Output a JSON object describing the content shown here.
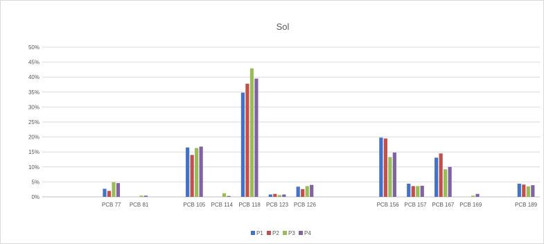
{
  "chart_data": {
    "type": "bar",
    "title": "Sol",
    "xlabel": "",
    "ylabel": "",
    "ylim": [
      0,
      0.5
    ],
    "ytick_step": 0.05,
    "grid": true,
    "legend_position": "bottom",
    "categories": [
      "",
      "",
      "PCB 77",
      "PCB 81",
      "",
      "PCB 105",
      "PCB 114",
      "PCB 118",
      "PCB 123",
      "PCB 126",
      "",
      "",
      "PCB 156",
      "PCB 157",
      "PCB 167",
      "PCB 169",
      "",
      "PCB 189"
    ],
    "series": [
      {
        "name": "P1",
        "color": "#4472C4",
        "values": [
          null,
          null,
          0.027,
          0.0,
          null,
          0.165,
          0.0,
          0.348,
          0.008,
          0.034,
          null,
          null,
          0.198,
          0.044,
          0.131,
          0.0,
          null,
          0.044
        ]
      },
      {
        "name": "P2",
        "color": "#C0504D",
        "values": [
          null,
          null,
          0.02,
          0.0,
          null,
          0.14,
          0.0,
          0.378,
          0.01,
          0.026,
          null,
          null,
          0.195,
          0.036,
          0.145,
          0.0,
          null,
          0.041
        ]
      },
      {
        "name": "P3",
        "color": "#9BBB59",
        "values": [
          null,
          null,
          0.049,
          0.004,
          null,
          0.163,
          0.012,
          0.429,
          0.006,
          0.036,
          null,
          null,
          0.133,
          0.036,
          0.092,
          0.004,
          null,
          0.035
        ]
      },
      {
        "name": "P4",
        "color": "#8064A2",
        "values": [
          null,
          null,
          0.046,
          0.004,
          null,
          0.168,
          0.003,
          0.395,
          0.008,
          0.04,
          null,
          null,
          0.148,
          0.037,
          0.1,
          0.01,
          null,
          0.039
        ]
      }
    ],
    "ytick_labels": [
      "0%",
      "5%",
      "10%",
      "15%",
      "20%",
      "25%",
      "30%",
      "35%",
      "40%",
      "45%",
      "50%"
    ]
  }
}
